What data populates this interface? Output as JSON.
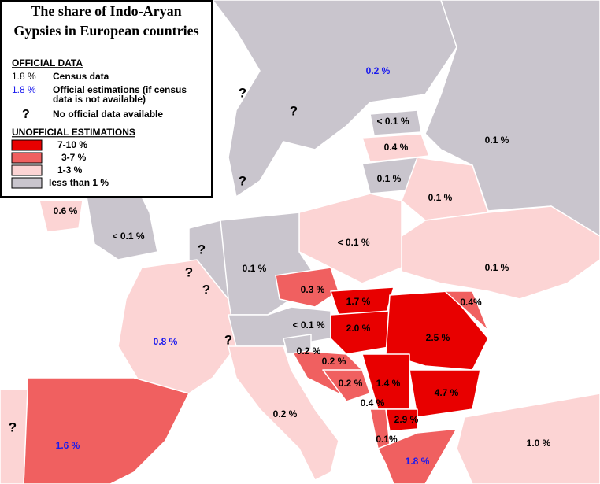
{
  "title_lines": [
    "The share of Indo-Aryan",
    "Gypsies in European countries"
  ],
  "legend": {
    "official_heading": "OFFICIAL DATA",
    "official_items": [
      {
        "sample": "1.8 %",
        "sample_color": "#000000",
        "lines": [
          "Census data"
        ]
      },
      {
        "sample": "1.8 %",
        "sample_color": "#1a1aee",
        "lines": [
          "Official estimations (if census",
          "data is not available)"
        ]
      },
      {
        "sample": "?",
        "sample_color": "#000000",
        "lines": [
          "No official data available"
        ]
      }
    ],
    "unofficial_heading": "UNOFFICIAL ESTIMATIONS",
    "unofficial_items": [
      {
        "color": "#e80000",
        "text": "7-10 %"
      },
      {
        "color": "#f06060",
        "text": "3-7 %"
      },
      {
        "color": "#fcd4d4",
        "text": "1-3 %"
      },
      {
        "color": "#c9c5cd",
        "text": "less than 1 %"
      }
    ]
  },
  "labels": [
    {
      "text": "0.2 %",
      "color": "#1a1aee"
    },
    {
      "text": "?",
      "color": "#000000"
    },
    {
      "text": "?",
      "color": "#000000"
    },
    {
      "text": "< 0.1 %",
      "color": "#000000"
    },
    {
      "text": "0.4 %",
      "color": "#000000"
    },
    {
      "text": "0.1 %",
      "color": "#000000"
    },
    {
      "text": "?",
      "color": "#000000"
    },
    {
      "text": "0.1 %",
      "color": "#000000"
    },
    {
      "text": "0.1 %",
      "color": "#000000"
    },
    {
      "text": "0.6 %",
      "color": "#000000"
    },
    {
      "text": "< 0.1 %",
      "color": "#000000"
    },
    {
      "text": "?",
      "color": "#000000"
    },
    {
      "text": "< 0.1 %",
      "color": "#000000"
    },
    {
      "text": "?",
      "color": "#000000"
    },
    {
      "text": "0.1 %",
      "color": "#000000"
    },
    {
      "text": "0.1 %",
      "color": "#000000"
    },
    {
      "text": "?",
      "color": "#000000"
    },
    {
      "text": "0.3 %",
      "color": "#000000"
    },
    {
      "text": "1.7 %",
      "color": "#000000"
    },
    {
      "text": "0.4%",
      "color": "#000000"
    },
    {
      "text": "< 0.1 %",
      "color": "#000000"
    },
    {
      "text": "2.0 %",
      "color": "#000000"
    },
    {
      "text": "0.8 %",
      "color": "#1a1aee"
    },
    {
      "text": "?",
      "color": "#000000"
    },
    {
      "text": "2.5 %",
      "color": "#000000"
    },
    {
      "text": "0.2 %",
      "color": "#000000"
    },
    {
      "text": "0.2 %",
      "color": "#000000"
    },
    {
      "text": "0.2 %",
      "color": "#000000"
    },
    {
      "text": "1.4 %",
      "color": "#000000"
    },
    {
      "text": "4.7 %",
      "color": "#000000"
    },
    {
      "text": "0.4 %",
      "color": "#000000"
    },
    {
      "text": "2.9 %",
      "color": "#000000"
    },
    {
      "text": "0.2 %",
      "color": "#000000"
    },
    {
      "text": "?",
      "color": "#000000"
    },
    {
      "text": "0.1%",
      "color": "#000000"
    },
    {
      "text": "1.0 %",
      "color": "#000000"
    },
    {
      "text": "1.6 %",
      "color": "#1a1aee"
    },
    {
      "text": "1.8 %",
      "color": "#1a1aee"
    }
  ]
}
